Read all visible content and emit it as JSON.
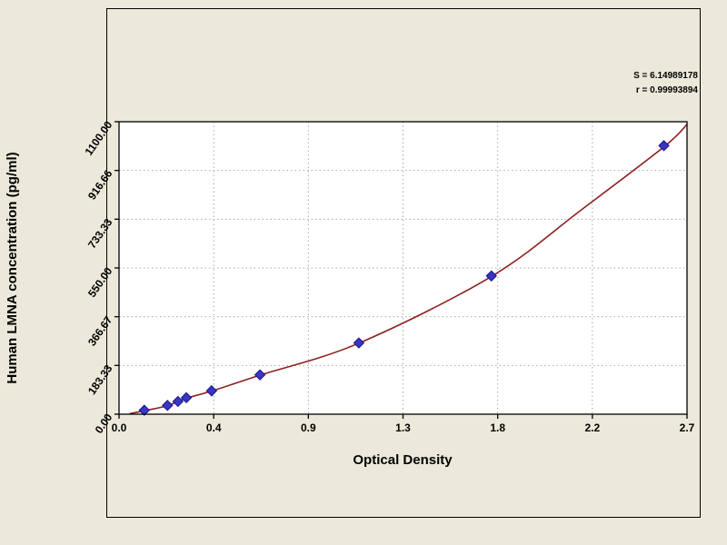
{
  "chart_data": {
    "type": "scatter",
    "title": "",
    "xlabel": "Optical Density",
    "ylabel": "Human LMNA concentration (pg/ml)",
    "xlim": [
      0,
      2.7
    ],
    "ylim": [
      0,
      1100
    ],
    "grid": "dotted",
    "legend": "none",
    "x_tick_positions": [
      0,
      0.45,
      0.9,
      1.35,
      1.8,
      2.25,
      2.7
    ],
    "x_tick_labels": [
      "0.0",
      "0.4",
      "0.9",
      "1.3",
      "1.8",
      "2.2",
      "2.7"
    ],
    "y_tick_positions": [
      0,
      183.33,
      366.67,
      550.0,
      733.33,
      916.66,
      1100.0
    ],
    "y_tick_labels": [
      "0.00",
      "183.33",
      "366.67",
      "550.00",
      "733.33",
      "916.66",
      "1100.00"
    ],
    "annotations": {
      "s": "S = 6.14989178",
      "r": "r = 0.99993894"
    },
    "series": [
      {
        "name": "standard-points",
        "type": "scatter",
        "marker": "diamond",
        "color": "#3b35c2",
        "edge_color": "#14148c",
        "x": [
          0.12,
          0.23,
          0.28,
          0.32,
          0.44,
          0.67,
          1.14,
          1.77,
          2.59
        ],
        "y": [
          15,
          33,
          48,
          62,
          88,
          148,
          268,
          520,
          1010
        ]
      },
      {
        "name": "fitted-curve",
        "type": "line",
        "color": "#8e1f1f",
        "x": [
          0.05,
          0.12,
          0.23,
          0.32,
          0.44,
          0.67,
          1.14,
          1.77,
          2.2,
          2.59,
          2.7
        ],
        "y": [
          2,
          13,
          32,
          60,
          87,
          147,
          267,
          518,
          770,
          1005,
          1090
        ]
      }
    ],
    "colors": {
      "background": "#ece9da",
      "plot_background": "#ffffff",
      "grid": "#aaaaaa",
      "frame": "#000000",
      "text": "#000000"
    }
  }
}
